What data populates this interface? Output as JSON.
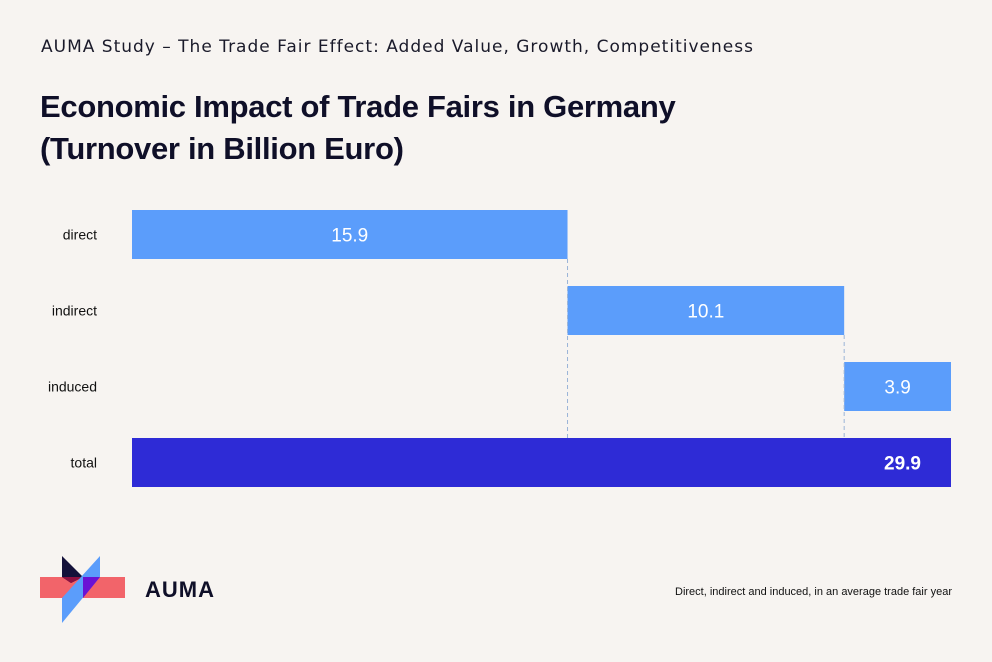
{
  "header": {
    "subtitle": "AUMA Study – The Trade Fair Effect: Added Value, Growth, Competitiveness",
    "title_line1": "Economic Impact of Trade Fairs in Germany",
    "title_line2": "(Turnover in Billion Euro)"
  },
  "chart_data": {
    "type": "bar",
    "subtype": "waterfall",
    "orientation": "horizontal",
    "title": "Economic Impact of Trade Fairs in Germany (Turnover in Billion Euro)",
    "categories": [
      "direct",
      "indirect",
      "induced",
      "total"
    ],
    "values": [
      15.9,
      10.1,
      3.9,
      29.9
    ],
    "value_labels": [
      "15.9",
      "10.1",
      "3.9",
      "29.9"
    ],
    "is_total": [
      false,
      false,
      false,
      true
    ],
    "xlim": [
      0,
      29.9
    ],
    "grid": false,
    "colors": {
      "component": "#5b9dfb",
      "total": "#2e2bd6",
      "connector": "#9bb4d8"
    }
  },
  "footer": {
    "logo_text": "AUMA",
    "footnote": "Direct, indirect and induced, in an average trade fair year"
  }
}
